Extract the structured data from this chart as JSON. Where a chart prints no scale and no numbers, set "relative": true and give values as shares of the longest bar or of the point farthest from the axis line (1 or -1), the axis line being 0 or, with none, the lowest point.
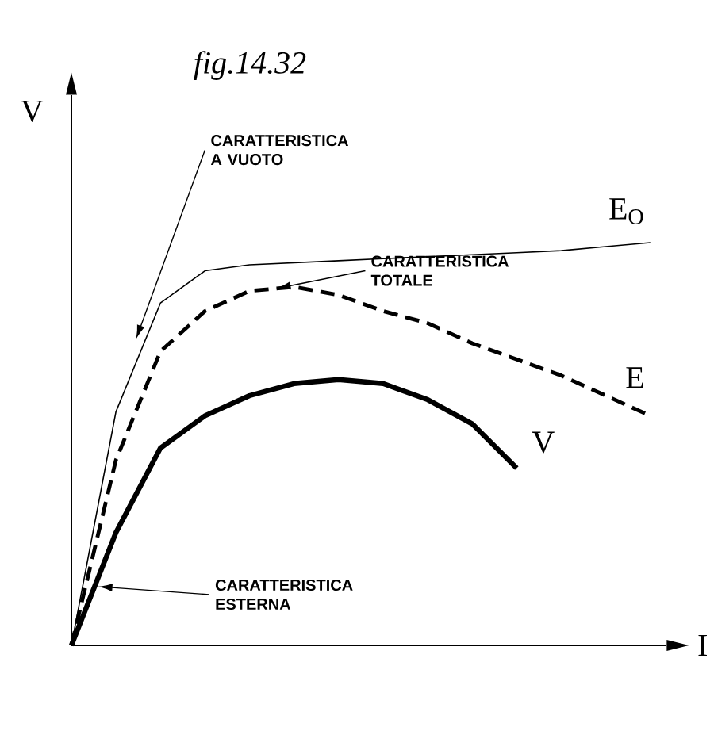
{
  "chart_data": {
    "type": "line",
    "relative": true,
    "title": "fig.14.32",
    "xlabel": "I",
    "ylabel": "V",
    "categories": [
      null,
      null,
      null,
      null,
      null,
      null,
      null,
      null,
      null,
      null,
      null,
      null,
      null,
      null
    ],
    "series": [
      {
        "name": "E$_{O}$",
        "color": "#000000",
        "line_style": "solid",
        "values": [
          0,
          0.58,
          0.85,
          0.93,
          0.945,
          0.95,
          0.955,
          0.96,
          0.965,
          0.97,
          0.975,
          0.98,
          0.99,
          1.0
        ]
      },
      {
        "name": "E",
        "color": "#000000",
        "line_style": "dashed",
        "values": [
          0,
          0.46,
          0.73,
          0.83,
          0.88,
          0.89,
          0.87,
          0.83,
          0.8,
          0.75,
          0.71,
          0.67,
          0.62,
          0.57
        ]
      },
      {
        "name": "V",
        "color": "#000000",
        "line_style": "solid",
        "values": [
          0,
          0.28,
          0.49,
          0.57,
          0.62,
          0.65,
          0.66,
          0.65,
          0.61,
          0.55,
          0.44,
          null,
          null,
          null
        ]
      }
    ],
    "annotations": [
      "CARATTERISTICA A VUOTO",
      "CARATTERISTICA TOTALE",
      "CARATTERISTICA ESTERNA"
    ]
  }
}
